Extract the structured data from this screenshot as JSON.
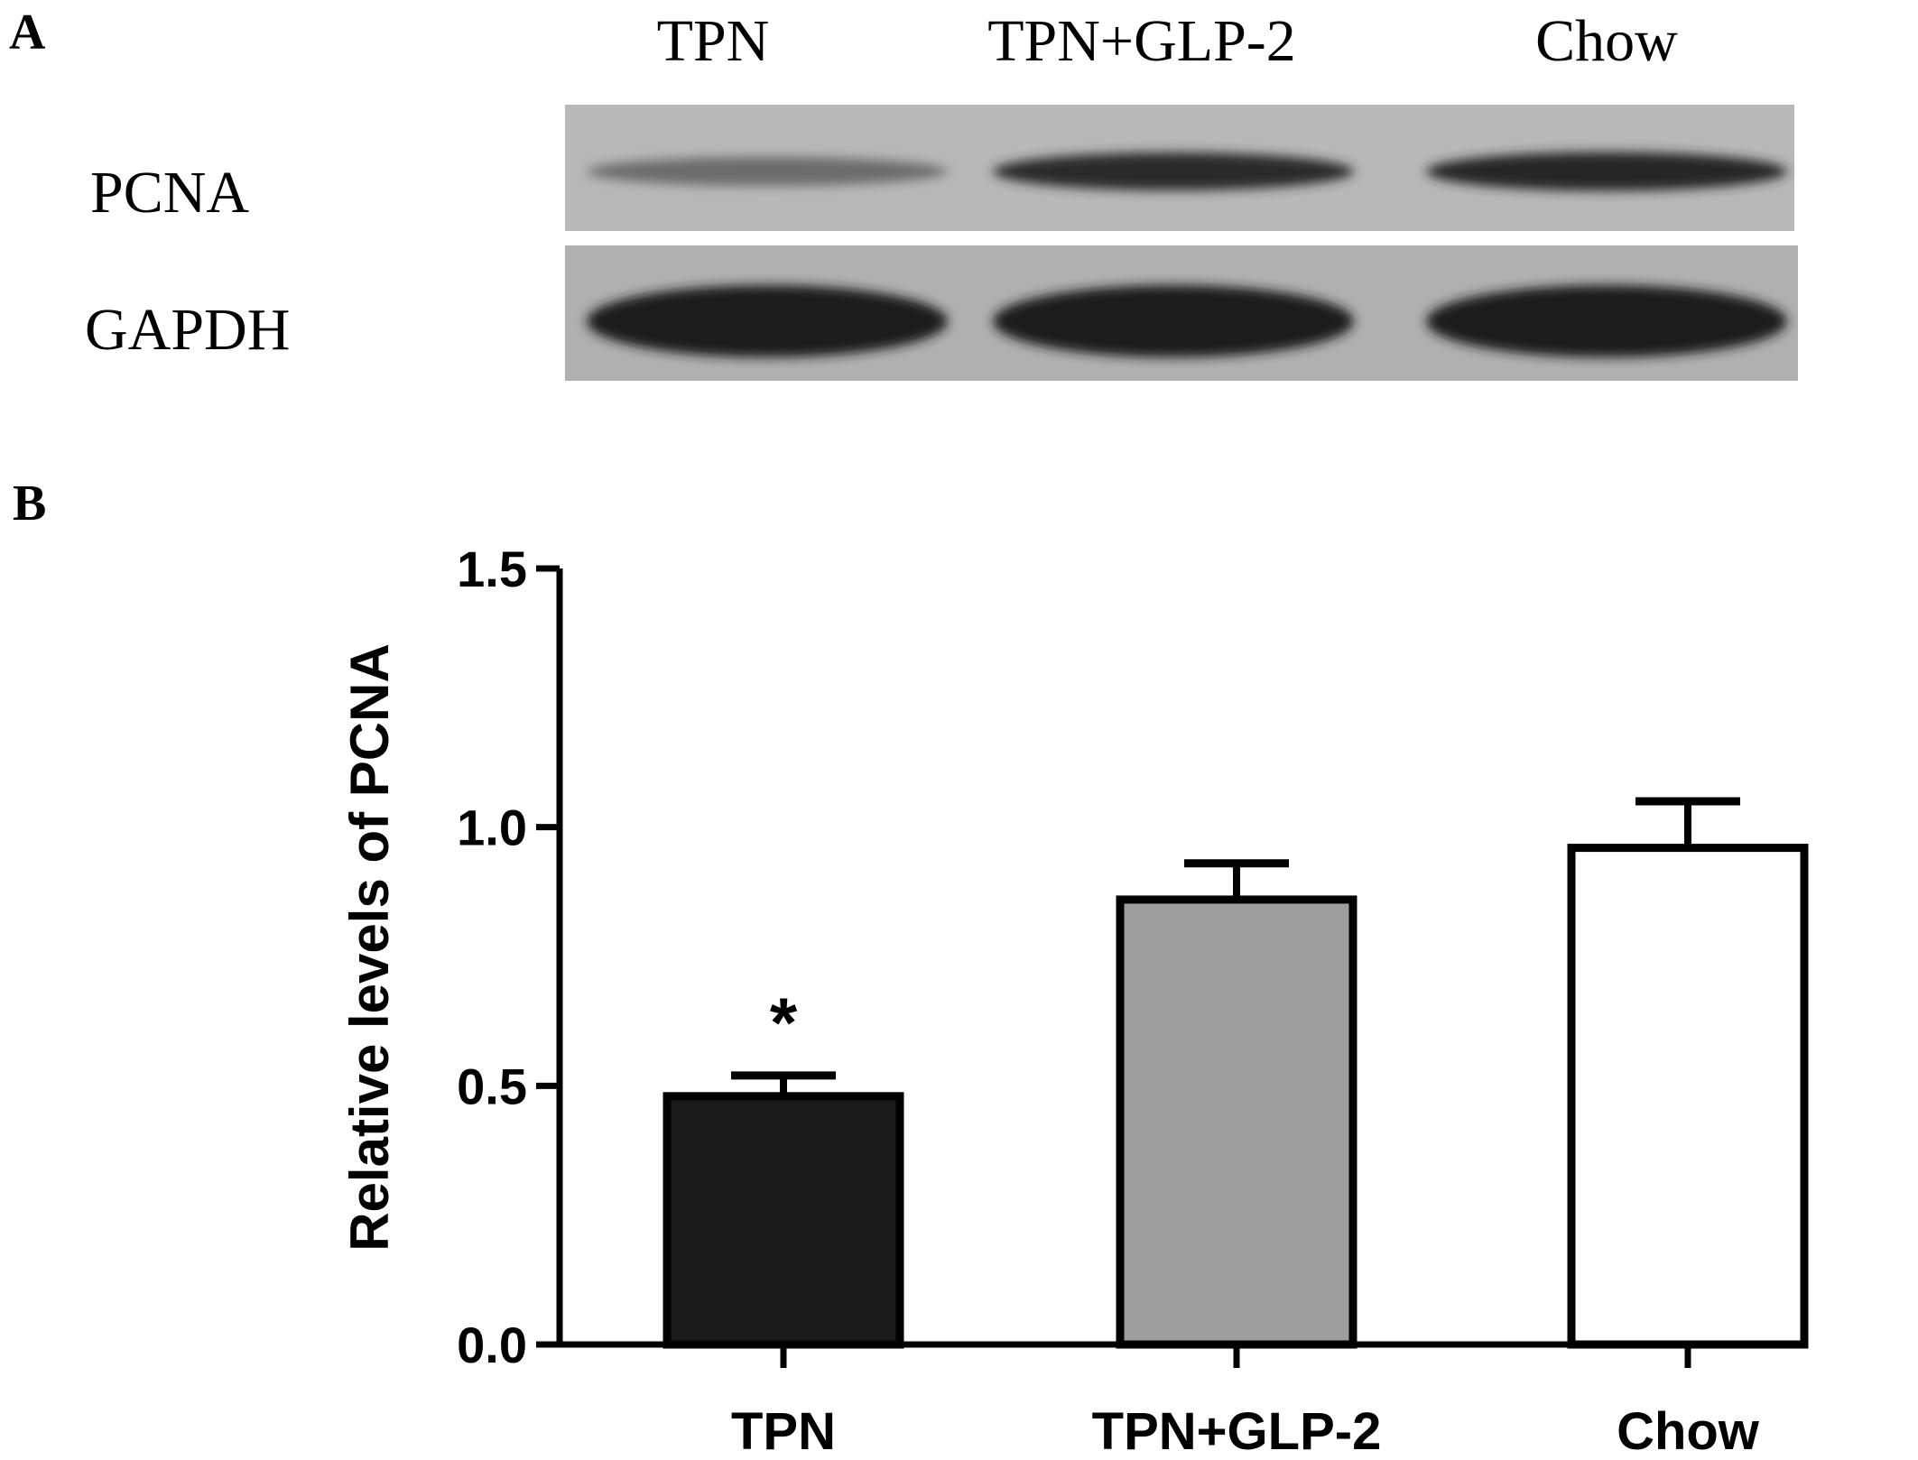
{
  "panel_a": {
    "label": "A",
    "lanes": [
      "TPN",
      "TPN+GLP-2",
      "Chow"
    ],
    "rows": [
      "PCNA",
      "GAPDH"
    ],
    "blot_colors": {
      "background": "#b3b3b3",
      "band": "#1f1f1f"
    },
    "band_intensity": {
      "PCNA": [
        0.4,
        0.9,
        0.95
      ],
      "GAPDH": [
        1.0,
        1.0,
        1.0
      ]
    }
  },
  "panel_b": {
    "label": "B"
  },
  "chart_data": {
    "type": "bar",
    "categories": [
      "TPN",
      "TPN+GLP-2",
      "Chow"
    ],
    "values": [
      0.48,
      0.86,
      0.96
    ],
    "error": [
      0.04,
      0.07,
      0.09
    ],
    "bar_colors": [
      "#1a1a1a",
      "#9e9e9e",
      "#ffffff"
    ],
    "annotations": [
      "*",
      "",
      ""
    ],
    "ylabel": "Relative levels of PCNA",
    "xlabel": "",
    "ylim": [
      0,
      1.5
    ],
    "yticks": [
      "0.0",
      "0.5",
      "1.0",
      "1.5"
    ],
    "grid": false
  }
}
